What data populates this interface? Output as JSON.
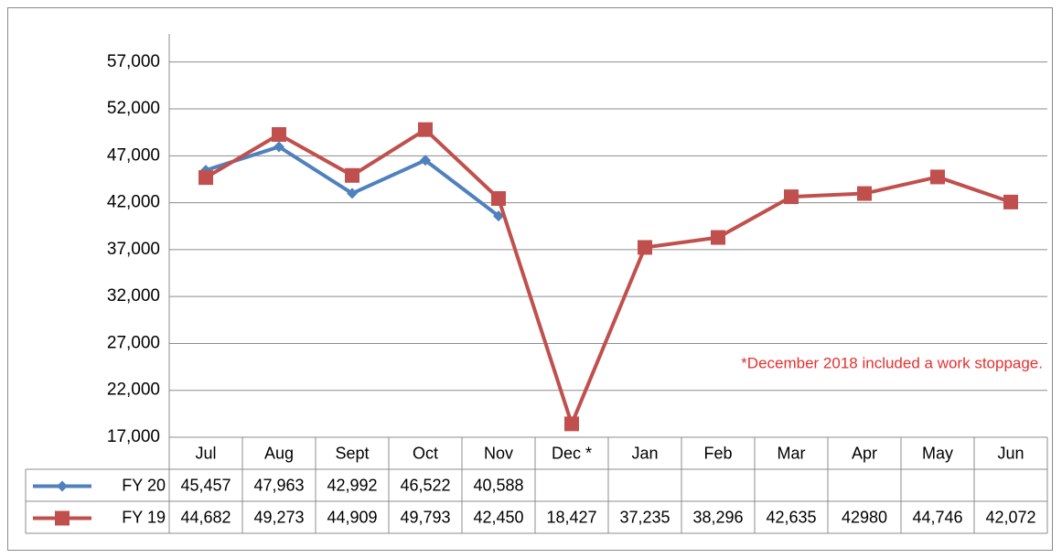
{
  "chart_data": {
    "type": "line",
    "categories": [
      "Jul",
      "Aug",
      "Sept",
      "Oct",
      "Nov",
      "Dec *",
      "Jan",
      "Feb",
      "Mar",
      "Apr",
      "May",
      "Jun"
    ],
    "series": [
      {
        "name": "FY 20",
        "color": "#4f81bd",
        "marker": "diamond",
        "values": [
          45457,
          47963,
          42992,
          46522,
          40588,
          null,
          null,
          null,
          null,
          null,
          null,
          null
        ],
        "value_labels": [
          "45,457",
          "47,963",
          "42,992",
          "46,522",
          "40,588",
          null,
          null,
          null,
          null,
          null,
          null,
          null
        ]
      },
      {
        "name": "FY 19",
        "color": "#c0504d",
        "marker": "square",
        "values": [
          44682,
          49273,
          44909,
          49793,
          42450,
          18427,
          37235,
          38296,
          42635,
          42980,
          44746,
          42072
        ],
        "value_labels": [
          "44,682",
          "49,273",
          "44,909",
          "49,793",
          "42,450",
          "18,427",
          "37,235",
          "38,296",
          "42,635",
          "42980",
          "44,746",
          "42,072"
        ]
      }
    ],
    "ylim": [
      17000,
      60000
    ],
    "yticks": [
      {
        "value": 17000,
        "label": "17,000"
      },
      {
        "value": 22000,
        "label": "22,000"
      },
      {
        "value": 27000,
        "label": "27,000"
      },
      {
        "value": 32000,
        "label": "32,000"
      },
      {
        "value": 37000,
        "label": "37,000"
      },
      {
        "value": 42000,
        "label": "42,000"
      },
      {
        "value": 47000,
        "label": "47,000"
      },
      {
        "value": 52000,
        "label": "52,000"
      },
      {
        "value": 57000,
        "label": "57,000"
      }
    ],
    "grid": true,
    "annotation": "*December 2018 included a work stoppage.",
    "annotation_color": "#e53030"
  }
}
